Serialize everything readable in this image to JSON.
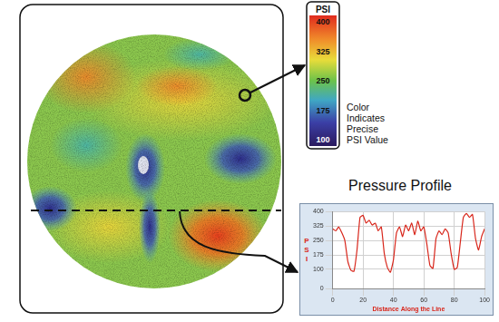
{
  "color_bar": {
    "title": "PSI",
    "lim": [
      100,
      400
    ],
    "ticks": [
      100,
      175,
      250,
      325,
      400
    ],
    "caption": [
      "Color",
      "Indicates",
      "Precise",
      "PSI Value"
    ]
  },
  "chart_data": {
    "type": "line",
    "title": "Pressure Profile",
    "x_label": "Distance Along the Line",
    "y_label": "PSI",
    "x": [
      0,
      2,
      4,
      6,
      8,
      10,
      12,
      14,
      16,
      18,
      20,
      22,
      24,
      26,
      28,
      30,
      32,
      34,
      36,
      38,
      40,
      42,
      44,
      46,
      48,
      50,
      52,
      54,
      56,
      58,
      60,
      62,
      64,
      66,
      68,
      70,
      72,
      74,
      76,
      78,
      80,
      82,
      84,
      86,
      88,
      90,
      92,
      94,
      96,
      98,
      100
    ],
    "values": [
      310,
      300,
      320,
      290,
      250,
      140,
      95,
      90,
      200,
      370,
      380,
      340,
      355,
      330,
      340,
      300,
      320,
      180,
      110,
      85,
      150,
      290,
      320,
      270,
      330,
      300,
      340,
      280,
      350,
      300,
      320,
      230,
      120,
      105,
      260,
      300,
      280,
      310,
      290,
      180,
      100,
      110,
      240,
      370,
      390,
      370,
      385,
      260,
      200,
      270,
      310
    ],
    "color": "#d8261b",
    "xlim": [
      0,
      100
    ],
    "xticks": [
      0,
      20,
      40,
      60,
      80,
      100
    ],
    "ylim": [
      0,
      400
    ],
    "yticks": [
      0,
      100,
      175,
      250,
      325,
      400
    ],
    "grid": true
  }
}
